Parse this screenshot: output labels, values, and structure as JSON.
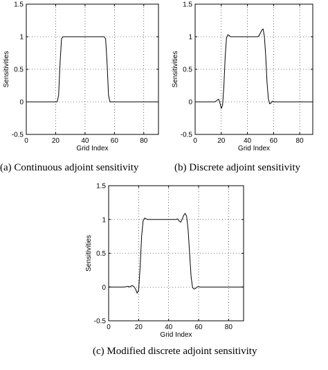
{
  "figure": {
    "panels": [
      {
        "id": "a",
        "caption": "(a) Continuous adjoint sensitivity"
      },
      {
        "id": "b",
        "caption": "(b) Discrete adjoint sensitivity"
      },
      {
        "id": "c",
        "caption": "(c) Modified discrete adjoint sensitivity"
      }
    ]
  },
  "chart_data": [
    {
      "type": "line",
      "xlabel": "Grid Index",
      "ylabel": "Sensitivities",
      "xlim": [
        0,
        90
      ],
      "ylim": [
        -0.5,
        1.5
      ],
      "xticks": [
        "0",
        "20",
        "40",
        "60",
        "80"
      ],
      "yticks": [
        "1.5",
        "1",
        "0.5",
        "0",
        "-0.5"
      ],
      "grid": true,
      "series": [
        {
          "x": [
            0,
            21,
            22,
            23,
            24,
            25,
            53,
            54,
            55,
            56,
            57,
            90
          ],
          "y": [
            0,
            0,
            0.1,
            0.6,
            0.97,
            1.0,
            1.0,
            0.97,
            0.6,
            0.1,
            0,
            0
          ]
        }
      ]
    },
    {
      "type": "line",
      "xlabel": "Grid Index",
      "ylabel": "Sensitivities",
      "xlim": [
        0,
        90
      ],
      "ylim": [
        -0.5,
        1.5
      ],
      "xticks": [
        "0",
        "20",
        "40",
        "60",
        "80"
      ],
      "yticks": [
        "1.5",
        "1",
        "0.5",
        "0",
        "-0.5"
      ],
      "grid": true,
      "series": [
        {
          "x": [
            0,
            15,
            16,
            17,
            18,
            19,
            20,
            21,
            22,
            23,
            24,
            25,
            26,
            27,
            28,
            30,
            48,
            49,
            50,
            51,
            52,
            53,
            54,
            55,
            56,
            57,
            58,
            59,
            60,
            62,
            90
          ],
          "y": [
            0,
            0,
            0.01,
            0.03,
            0.04,
            -0.02,
            -0.1,
            -0.05,
            0.25,
            0.7,
            0.98,
            1.03,
            1.02,
            1.0,
            1.0,
            1.0,
            1.0,
            1.02,
            1.06,
            1.1,
            1.12,
            1.0,
            0.7,
            0.3,
            0.05,
            -0.03,
            -0.02,
            0.01,
            0.0,
            0,
            0
          ]
        }
      ]
    },
    {
      "type": "line",
      "xlabel": "Grid Index",
      "ylabel": "Sensitivities",
      "xlim": [
        0,
        90
      ],
      "ylim": [
        -0.5,
        1.5
      ],
      "xticks": [
        "0",
        "20",
        "40",
        "60",
        "80"
      ],
      "yticks": [
        "1.5",
        "1",
        "0.5",
        "0",
        "-0.5"
      ],
      "grid": true,
      "series": [
        {
          "x": [
            0,
            10,
            12,
            13,
            14,
            15,
            16,
            17,
            18,
            19,
            20,
            21,
            22,
            23,
            24,
            25,
            26,
            27,
            28,
            44,
            45,
            46,
            47,
            48,
            49,
            50,
            51,
            52,
            53,
            54,
            55,
            56,
            57,
            58,
            59,
            60,
            61,
            63,
            90
          ],
          "y": [
            0,
            0,
            0.005,
            0.01,
            0.0,
            0.015,
            0.02,
            0.0,
            -0.03,
            -0.09,
            -0.05,
            0.3,
            0.75,
            0.98,
            1.02,
            1.01,
            1.0,
            1.0,
            1.0,
            1.0,
            1.0,
            1.01,
            0.98,
            0.96,
            1.0,
            1.06,
            1.09,
            1.05,
            0.85,
            0.5,
            0.15,
            -0.01,
            -0.03,
            -0.02,
            0.0,
            0.005,
            0.0,
            0,
            0
          ]
        }
      ]
    }
  ]
}
